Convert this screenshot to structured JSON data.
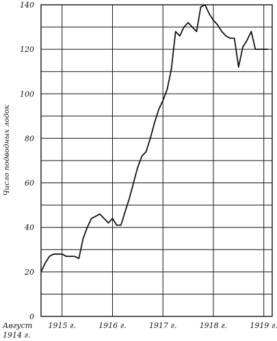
{
  "chart_data": {
    "type": "line",
    "ylabel": "Число подводных лодок",
    "ylim": [
      0,
      140
    ],
    "yticks": [
      "0",
      "20",
      "40",
      "60",
      "80",
      "100",
      "120",
      "140"
    ],
    "yticks_values": [
      0,
      20,
      40,
      60,
      80,
      100,
      120,
      140
    ],
    "xlim": [
      0,
      55
    ],
    "xticks": [
      {
        "label": "Август",
        "label2": "1914 г.",
        "x": 0
      },
      {
        "label": "1915 г.",
        "x": 5
      },
      {
        "label": "1916 г.",
        "x": 17
      },
      {
        "label": "1917 г.",
        "x": 29
      },
      {
        "label": "1918 г.",
        "x": 41
      },
      {
        "label": "1919 г.",
        "x": 53
      }
    ],
    "grid": true,
    "series": [
      {
        "x": [
          0,
          1,
          2,
          3,
          4,
          5,
          6,
          7,
          8,
          9,
          10,
          11,
          12,
          13,
          14,
          15,
          16,
          17,
          18,
          19,
          20,
          21,
          22,
          23,
          24,
          25,
          26,
          27,
          28,
          29,
          30,
          31,
          32,
          33,
          34,
          35,
          36,
          37,
          38,
          39,
          40,
          41,
          42,
          43,
          44,
          45,
          46,
          47,
          48,
          49,
          50,
          51,
          52,
          53,
          54
        ],
        "values": [
          20,
          24,
          27,
          28,
          28,
          28,
          27,
          27,
          27,
          26,
          35,
          40,
          44,
          45,
          46,
          44,
          42,
          44,
          41,
          41,
          47,
          53,
          60,
          67,
          72,
          74,
          80,
          87,
          93,
          97,
          102,
          111,
          128,
          126,
          130,
          132,
          130,
          128,
          139,
          140,
          136,
          133,
          131,
          128,
          126,
          125,
          125,
          112,
          121,
          124,
          128,
          120,
          120,
          120,
          120
        ]
      }
    ]
  }
}
